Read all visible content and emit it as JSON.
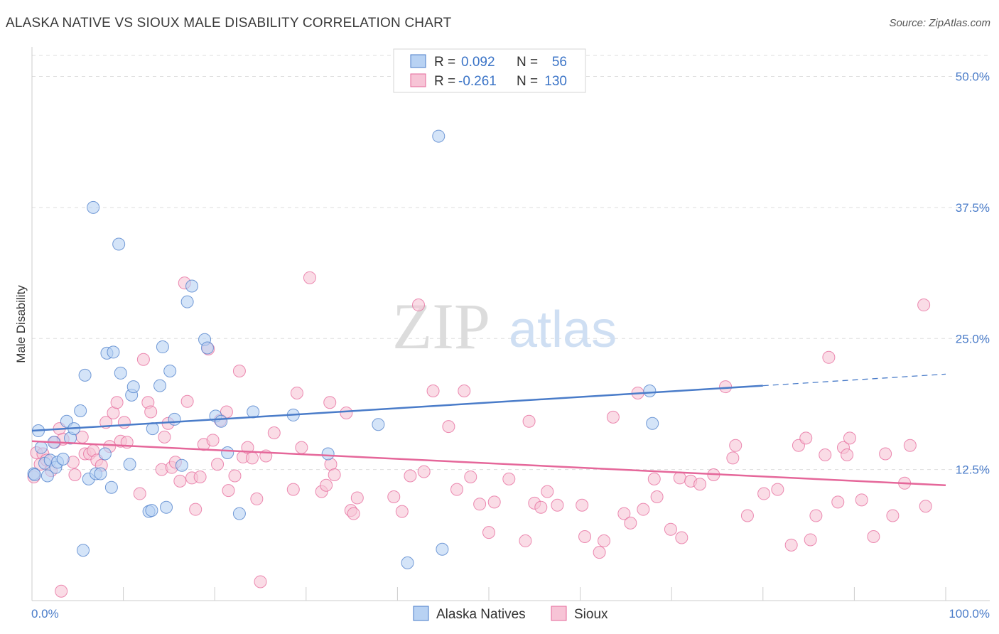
{
  "title": "ALASKA NATIVE VS SIOUX MALE DISABILITY CORRELATION CHART",
  "source": "Source: ZipAtlas.com",
  "watermark": {
    "zip": "ZIP",
    "atlas": "atlas"
  },
  "colors": {
    "blue": "#4a7cc9",
    "blue_fill": "#b8d2f3",
    "pink": "#e5679a",
    "pink_fill": "#f7c4d6",
    "grid": "#dddddd"
  },
  "legend": {
    "r_label": "R =",
    "n_label": "N =",
    "rows": [
      {
        "name": "Alaska Natives",
        "r": "0.092",
        "n": "56"
      },
      {
        "name": "Sioux",
        "r": "-0.261",
        "n": "130"
      }
    ]
  },
  "chart_data": {
    "type": "scatter",
    "title": "ALASKA NATIVE VS SIOUX MALE DISABILITY CORRELATION CHART",
    "xlabel": "",
    "ylabel": "Male Disability",
    "xlim": [
      0,
      100
    ],
    "ylim": [
      0,
      52
    ],
    "x_tick_labels": [
      "0.0%",
      "100.0%"
    ],
    "y_ticks": [
      12.5,
      25.0,
      37.5,
      50.0
    ],
    "y_tick_labels": [
      "12.5%",
      "25.0%",
      "37.5%",
      "50.0%"
    ],
    "series": [
      {
        "name": "Alaska Natives",
        "color": "#4a7cc9",
        "trend": {
          "x0": 0,
          "y0": 16.2,
          "x1": 80,
          "y1": 20.5,
          "dash_to_x": 100,
          "dash_to_y": 21.6
        },
        "points": [
          [
            0.2,
            12.1
          ],
          [
            0.7,
            16.2
          ],
          [
            1.0,
            14.6
          ],
          [
            1.4,
            13.1
          ],
          [
            1.7,
            11.9
          ],
          [
            2.0,
            13.4
          ],
          [
            2.4,
            15.1
          ],
          [
            2.6,
            12.7
          ],
          [
            2.8,
            13.2
          ],
          [
            3.4,
            13.5
          ],
          [
            3.8,
            17.1
          ],
          [
            4.2,
            15.5
          ],
          [
            4.6,
            16.4
          ],
          [
            5.3,
            18.1
          ],
          [
            5.6,
            4.8
          ],
          [
            5.8,
            21.5
          ],
          [
            6.2,
            11.6
          ],
          [
            6.7,
            37.5
          ],
          [
            7.0,
            12.1
          ],
          [
            7.5,
            12.1
          ],
          [
            8.0,
            14.0
          ],
          [
            8.2,
            23.6
          ],
          [
            8.7,
            10.8
          ],
          [
            8.9,
            23.7
          ],
          [
            9.5,
            34.0
          ],
          [
            9.7,
            21.7
          ],
          [
            10.7,
            13.0
          ],
          [
            10.9,
            19.6
          ],
          [
            11.1,
            20.4
          ],
          [
            12.8,
            8.5
          ],
          [
            13.1,
            8.6
          ],
          [
            13.2,
            16.4
          ],
          [
            14.0,
            20.5
          ],
          [
            14.3,
            24.2
          ],
          [
            14.7,
            8.9
          ],
          [
            15.1,
            21.9
          ],
          [
            15.6,
            17.3
          ],
          [
            16.4,
            12.9
          ],
          [
            17.0,
            28.5
          ],
          [
            17.5,
            30.0
          ],
          [
            18.9,
            24.9
          ],
          [
            19.2,
            24.1
          ],
          [
            20.1,
            17.6
          ],
          [
            20.7,
            17.1
          ],
          [
            21.4,
            14.1
          ],
          [
            22.7,
            8.3
          ],
          [
            24.2,
            18.0
          ],
          [
            28.6,
            17.7
          ],
          [
            32.4,
            14.0
          ],
          [
            37.9,
            16.8
          ],
          [
            41.1,
            3.6
          ],
          [
            44.5,
            44.3
          ],
          [
            44.9,
            4.9
          ],
          [
            67.6,
            20.0
          ],
          [
            67.9,
            16.9
          ],
          [
            0.3,
            12.0
          ]
        ]
      },
      {
        "name": "Sioux",
        "color": "#e5679a",
        "trend": {
          "x0": 0,
          "y0": 15.2,
          "x1": 100,
          "y1": 11.0
        },
        "points": [
          [
            0.2,
            11.8
          ],
          [
            0.5,
            14.1
          ],
          [
            0.9,
            13.0
          ],
          [
            1.2,
            14.0
          ],
          [
            1.6,
            13.4
          ],
          [
            2.1,
            12.4
          ],
          [
            2.5,
            15.1
          ],
          [
            3.0,
            16.4
          ],
          [
            3.4,
            15.4
          ],
          [
            4.5,
            13.2
          ],
          [
            4.7,
            12.0
          ],
          [
            5.5,
            15.6
          ],
          [
            5.8,
            14.0
          ],
          [
            6.3,
            14.0
          ],
          [
            6.7,
            14.3
          ],
          [
            7.1,
            13.4
          ],
          [
            7.6,
            12.9
          ],
          [
            8.1,
            17.0
          ],
          [
            8.5,
            14.7
          ],
          [
            8.9,
            17.9
          ],
          [
            9.3,
            18.9
          ],
          [
            9.7,
            15.2
          ],
          [
            10.1,
            17.0
          ],
          [
            10.4,
            15.1
          ],
          [
            11.8,
            10.2
          ],
          [
            12.2,
            23.0
          ],
          [
            12.7,
            18.9
          ],
          [
            13.0,
            18.0
          ],
          [
            14.2,
            12.5
          ],
          [
            14.5,
            15.6
          ],
          [
            14.9,
            16.9
          ],
          [
            15.3,
            12.7
          ],
          [
            15.7,
            13.2
          ],
          [
            16.2,
            11.4
          ],
          [
            16.7,
            30.3
          ],
          [
            17.0,
            19.0
          ],
          [
            17.5,
            11.7
          ],
          [
            17.9,
            8.7
          ],
          [
            18.4,
            11.8
          ],
          [
            18.8,
            14.9
          ],
          [
            19.3,
            24.0
          ],
          [
            19.8,
            15.3
          ],
          [
            20.3,
            13.0
          ],
          [
            20.6,
            17.2
          ],
          [
            21.3,
            18.0
          ],
          [
            21.5,
            10.5
          ],
          [
            22.2,
            11.9
          ],
          [
            22.7,
            21.9
          ],
          [
            23.1,
            13.7
          ],
          [
            23.6,
            14.6
          ],
          [
            24.1,
            13.6
          ],
          [
            24.6,
            9.7
          ],
          [
            25.0,
            1.8
          ],
          [
            25.6,
            13.8
          ],
          [
            26.5,
            16.0
          ],
          [
            28.6,
            10.6
          ],
          [
            29.0,
            19.8
          ],
          [
            29.5,
            14.6
          ],
          [
            30.4,
            30.8
          ],
          [
            31.7,
            10.4
          ],
          [
            32.2,
            11.0
          ],
          [
            32.6,
            18.9
          ],
          [
            32.7,
            13.0
          ],
          [
            33.1,
            12.0
          ],
          [
            34.4,
            17.9
          ],
          [
            34.9,
            8.6
          ],
          [
            35.2,
            8.3
          ],
          [
            35.6,
            9.8
          ],
          [
            39.6,
            9.9
          ],
          [
            40.5,
            8.5
          ],
          [
            41.4,
            11.9
          ],
          [
            42.3,
            28.2
          ],
          [
            42.9,
            12.3
          ],
          [
            43.9,
            20.0
          ],
          [
            45.6,
            16.6
          ],
          [
            46.5,
            10.6
          ],
          [
            47.3,
            20.0
          ],
          [
            48.0,
            11.8
          ],
          [
            49.0,
            9.2
          ],
          [
            50.0,
            6.5
          ],
          [
            50.6,
            9.4
          ],
          [
            52.2,
            11.6
          ],
          [
            54.0,
            5.7
          ],
          [
            54.4,
            17.1
          ],
          [
            55.0,
            9.3
          ],
          [
            55.7,
            8.9
          ],
          [
            56.4,
            10.4
          ],
          [
            57.5,
            9.1
          ],
          [
            60.2,
            9.1
          ],
          [
            60.5,
            6.1
          ],
          [
            62.1,
            4.6
          ],
          [
            62.6,
            5.7
          ],
          [
            63.6,
            17.5
          ],
          [
            64.8,
            8.3
          ],
          [
            65.5,
            7.4
          ],
          [
            66.3,
            19.8
          ],
          [
            66.9,
            8.7
          ],
          [
            68.1,
            11.6
          ],
          [
            68.4,
            9.9
          ],
          [
            69.9,
            6.8
          ],
          [
            70.9,
            11.7
          ],
          [
            71.1,
            6.0
          ],
          [
            72.1,
            11.4
          ],
          [
            73.1,
            11.1
          ],
          [
            74.6,
            12.0
          ],
          [
            75.9,
            20.4
          ],
          [
            76.7,
            13.6
          ],
          [
            77.0,
            14.8
          ],
          [
            78.3,
            8.1
          ],
          [
            80.1,
            10.2
          ],
          [
            81.6,
            10.6
          ],
          [
            83.1,
            5.3
          ],
          [
            83.9,
            14.8
          ],
          [
            84.7,
            15.5
          ],
          [
            85.2,
            5.8
          ],
          [
            85.8,
            8.1
          ],
          [
            86.8,
            13.9
          ],
          [
            87.2,
            23.2
          ],
          [
            88.2,
            9.4
          ],
          [
            88.8,
            14.6
          ],
          [
            89.2,
            13.9
          ],
          [
            89.5,
            15.5
          ],
          [
            90.8,
            9.6
          ],
          [
            92.1,
            6.1
          ],
          [
            93.4,
            14.0
          ],
          [
            94.2,
            8.1
          ],
          [
            95.5,
            11.2
          ],
          [
            96.1,
            14.8
          ],
          [
            97.6,
            28.2
          ],
          [
            97.8,
            9.0
          ],
          [
            3.2,
            0.9
          ]
        ]
      }
    ]
  },
  "bottom_legend": [
    "Alaska Natives",
    "Sioux"
  ]
}
